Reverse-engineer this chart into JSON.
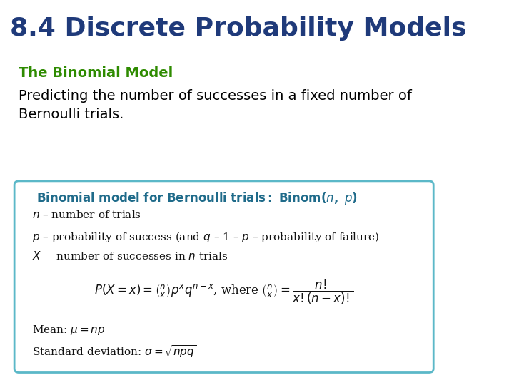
{
  "title": "8.4 Discrete Probability Models",
  "title_color": "#1F3A7A",
  "title_fontsize": 26,
  "subtitle": "The Binomial Model",
  "subtitle_color": "#2E8B00",
  "subtitle_fontsize": 14,
  "body_text": "Predicting the number of successes in a fixed number of\nBernoulli trials.",
  "body_color": "#000000",
  "body_fontsize": 14,
  "box_title": "Binomial model for Bernoulli trials: Binom(",
  "box_title_italic_n": "n",
  "box_title_mid": ", ",
  "box_title_italic_p": "p",
  "box_title_end": ")",
  "box_title_color": "#1F6B8A",
  "box_border_color": "#5BB8C8",
  "box_bg_color": "#FFFFFF",
  "background_color": "#FFFFFF",
  "line1_normal": "n",
  "line1_dash": " – number of trials",
  "line2_normal": "p",
  "line2_dash": " – probability of success (and ",
  "line2_q": "q",
  "line2_rest": " – 1 – p – probability of failure)",
  "line3": "X = number of successes in ",
  "line3_n": "n",
  "line3_end": " trials",
  "formula_text": "$P(X = x) = \\\\binom{n}{x} p^x q^{n-x}$, where $\\\\binom{n}{x} = \\\\dfrac{n!}{x!(n-x)!}$",
  "mean_text": "Mean: $\\\\mu = np$",
  "std_text": "Standard deviation: $\\\\sigma = \\\\sqrt{npq}$"
}
